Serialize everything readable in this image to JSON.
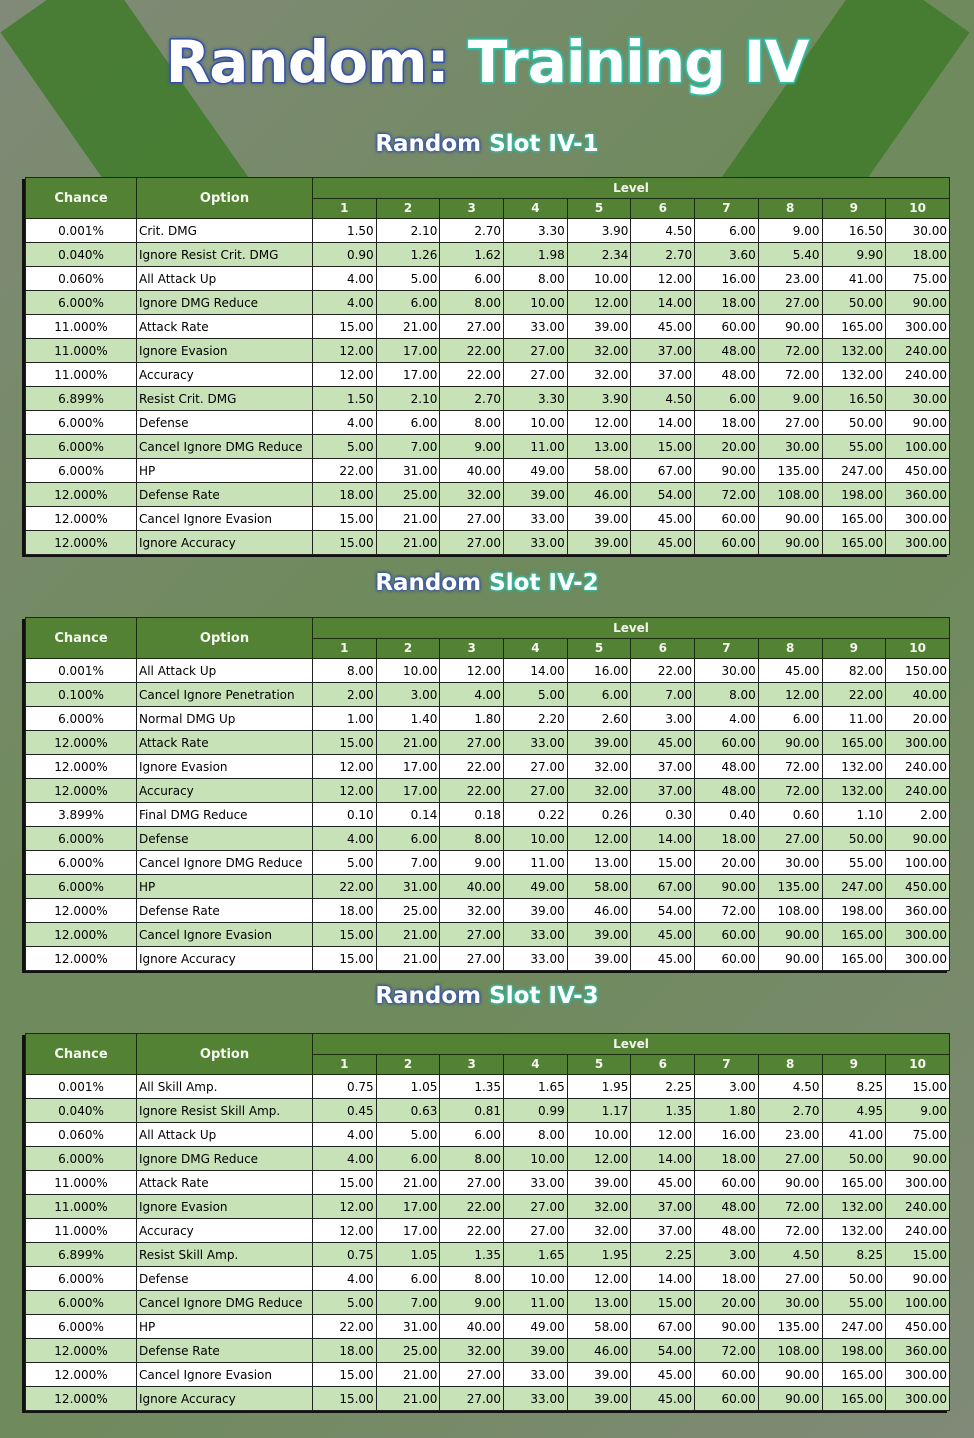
{
  "title": {
    "part1": "Random:",
    "part2": "Training IV"
  },
  "headers": {
    "chance": "Chance",
    "option": "Option",
    "level": "Level",
    "levels": [
      "1",
      "2",
      "3",
      "4",
      "5",
      "6",
      "7",
      "8",
      "9",
      "10"
    ]
  },
  "tables": [
    {
      "title_a": "Random",
      "title_b": "Slot IV-1",
      "rows": [
        [
          "0.001%",
          "Crit. DMG",
          "1.50",
          "2.10",
          "2.70",
          "3.30",
          "3.90",
          "4.50",
          "6.00",
          "9.00",
          "16.50",
          "30.00"
        ],
        [
          "0.040%",
          "Ignore Resist Crit. DMG",
          "0.90",
          "1.26",
          "1.62",
          "1.98",
          "2.34",
          "2.70",
          "3.60",
          "5.40",
          "9.90",
          "18.00"
        ],
        [
          "0.060%",
          "All Attack Up",
          "4.00",
          "5.00",
          "6.00",
          "8.00",
          "10.00",
          "12.00",
          "16.00",
          "23.00",
          "41.00",
          "75.00"
        ],
        [
          "6.000%",
          "Ignore DMG Reduce",
          "4.00",
          "6.00",
          "8.00",
          "10.00",
          "12.00",
          "14.00",
          "18.00",
          "27.00",
          "50.00",
          "90.00"
        ],
        [
          "11.000%",
          "Attack Rate",
          "15.00",
          "21.00",
          "27.00",
          "33.00",
          "39.00",
          "45.00",
          "60.00",
          "90.00",
          "165.00",
          "300.00"
        ],
        [
          "11.000%",
          "Ignore Evasion",
          "12.00",
          "17.00",
          "22.00",
          "27.00",
          "32.00",
          "37.00",
          "48.00",
          "72.00",
          "132.00",
          "240.00"
        ],
        [
          "11.000%",
          "Accuracy",
          "12.00",
          "17.00",
          "22.00",
          "27.00",
          "32.00",
          "37.00",
          "48.00",
          "72.00",
          "132.00",
          "240.00"
        ],
        [
          "6.899%",
          "Resist Crit. DMG",
          "1.50",
          "2.10",
          "2.70",
          "3.30",
          "3.90",
          "4.50",
          "6.00",
          "9.00",
          "16.50",
          "30.00"
        ],
        [
          "6.000%",
          "Defense",
          "4.00",
          "6.00",
          "8.00",
          "10.00",
          "12.00",
          "14.00",
          "18.00",
          "27.00",
          "50.00",
          "90.00"
        ],
        [
          "6.000%",
          "Cancel Ignore DMG Reduce",
          "5.00",
          "7.00",
          "9.00",
          "11.00",
          "13.00",
          "15.00",
          "20.00",
          "30.00",
          "55.00",
          "100.00"
        ],
        [
          "6.000%",
          "HP",
          "22.00",
          "31.00",
          "40.00",
          "49.00",
          "58.00",
          "67.00",
          "90.00",
          "135.00",
          "247.00",
          "450.00"
        ],
        [
          "12.000%",
          "Defense Rate",
          "18.00",
          "25.00",
          "32.00",
          "39.00",
          "46.00",
          "54.00",
          "72.00",
          "108.00",
          "198.00",
          "360.00"
        ],
        [
          "12.000%",
          "Cancel Ignore Evasion",
          "15.00",
          "21.00",
          "27.00",
          "33.00",
          "39.00",
          "45.00",
          "60.00",
          "90.00",
          "165.00",
          "300.00"
        ],
        [
          "12.000%",
          "Ignore Accuracy",
          "15.00",
          "21.00",
          "27.00",
          "33.00",
          "39.00",
          "45.00",
          "60.00",
          "90.00",
          "165.00",
          "300.00"
        ]
      ]
    },
    {
      "title_a": "Random",
      "title_b": "Slot IV-2",
      "rows": [
        [
          "0.001%",
          "All Attack Up",
          "8.00",
          "10.00",
          "12.00",
          "14.00",
          "16.00",
          "22.00",
          "30.00",
          "45.00",
          "82.00",
          "150.00"
        ],
        [
          "0.100%",
          "Cancel Ignore Penetration",
          "2.00",
          "3.00",
          "4.00",
          "5.00",
          "6.00",
          "7.00",
          "8.00",
          "12.00",
          "22.00",
          "40.00"
        ],
        [
          "6.000%",
          "Normal DMG Up",
          "1.00",
          "1.40",
          "1.80",
          "2.20",
          "2.60",
          "3.00",
          "4.00",
          "6.00",
          "11.00",
          "20.00"
        ],
        [
          "12.000%",
          "Attack Rate",
          "15.00",
          "21.00",
          "27.00",
          "33.00",
          "39.00",
          "45.00",
          "60.00",
          "90.00",
          "165.00",
          "300.00"
        ],
        [
          "12.000%",
          "Ignore Evasion",
          "12.00",
          "17.00",
          "22.00",
          "27.00",
          "32.00",
          "37.00",
          "48.00",
          "72.00",
          "132.00",
          "240.00"
        ],
        [
          "12.000%",
          "Accuracy",
          "12.00",
          "17.00",
          "22.00",
          "27.00",
          "32.00",
          "37.00",
          "48.00",
          "72.00",
          "132.00",
          "240.00"
        ],
        [
          "3.899%",
          "Final DMG Reduce",
          "0.10",
          "0.14",
          "0.18",
          "0.22",
          "0.26",
          "0.30",
          "0.40",
          "0.60",
          "1.10",
          "2.00"
        ],
        [
          "6.000%",
          "Defense",
          "4.00",
          "6.00",
          "8.00",
          "10.00",
          "12.00",
          "14.00",
          "18.00",
          "27.00",
          "50.00",
          "90.00"
        ],
        [
          "6.000%",
          "Cancel Ignore DMG Reduce",
          "5.00",
          "7.00",
          "9.00",
          "11.00",
          "13.00",
          "15.00",
          "20.00",
          "30.00",
          "55.00",
          "100.00"
        ],
        [
          "6.000%",
          "HP",
          "22.00",
          "31.00",
          "40.00",
          "49.00",
          "58.00",
          "67.00",
          "90.00",
          "135.00",
          "247.00",
          "450.00"
        ],
        [
          "12.000%",
          "Defense Rate",
          "18.00",
          "25.00",
          "32.00",
          "39.00",
          "46.00",
          "54.00",
          "72.00",
          "108.00",
          "198.00",
          "360.00"
        ],
        [
          "12.000%",
          "Cancel Ignore Evasion",
          "15.00",
          "21.00",
          "27.00",
          "33.00",
          "39.00",
          "45.00",
          "60.00",
          "90.00",
          "165.00",
          "300.00"
        ],
        [
          "12.000%",
          "Ignore Accuracy",
          "15.00",
          "21.00",
          "27.00",
          "33.00",
          "39.00",
          "45.00",
          "60.00",
          "90.00",
          "165.00",
          "300.00"
        ]
      ]
    },
    {
      "title_a": "Random",
      "title_b": "Slot IV-3",
      "rows": [
        [
          "0.001%",
          "All Skill Amp.",
          "0.75",
          "1.05",
          "1.35",
          "1.65",
          "1.95",
          "2.25",
          "3.00",
          "4.50",
          "8.25",
          "15.00"
        ],
        [
          "0.040%",
          "Ignore Resist Skill Amp.",
          "0.45",
          "0.63",
          "0.81",
          "0.99",
          "1.17",
          "1.35",
          "1.80",
          "2.70",
          "4.95",
          "9.00"
        ],
        [
          "0.060%",
          "All Attack Up",
          "4.00",
          "5.00",
          "6.00",
          "8.00",
          "10.00",
          "12.00",
          "16.00",
          "23.00",
          "41.00",
          "75.00"
        ],
        [
          "6.000%",
          "Ignore DMG Reduce",
          "4.00",
          "6.00",
          "8.00",
          "10.00",
          "12.00",
          "14.00",
          "18.00",
          "27.00",
          "50.00",
          "90.00"
        ],
        [
          "11.000%",
          "Attack Rate",
          "15.00",
          "21.00",
          "27.00",
          "33.00",
          "39.00",
          "45.00",
          "60.00",
          "90.00",
          "165.00",
          "300.00"
        ],
        [
          "11.000%",
          "Ignore Evasion",
          "12.00",
          "17.00",
          "22.00",
          "27.00",
          "32.00",
          "37.00",
          "48.00",
          "72.00",
          "132.00",
          "240.00"
        ],
        [
          "11.000%",
          "Accuracy",
          "12.00",
          "17.00",
          "22.00",
          "27.00",
          "32.00",
          "37.00",
          "48.00",
          "72.00",
          "132.00",
          "240.00"
        ],
        [
          "6.899%",
          "Resist Skill Amp.",
          "0.75",
          "1.05",
          "1.35",
          "1.65",
          "1.95",
          "2.25",
          "3.00",
          "4.50",
          "8.25",
          "15.00"
        ],
        [
          "6.000%",
          "Defense",
          "4.00",
          "6.00",
          "8.00",
          "10.00",
          "12.00",
          "14.00",
          "18.00",
          "27.00",
          "50.00",
          "90.00"
        ],
        [
          "6.000%",
          "Cancel Ignore DMG Reduce",
          "5.00",
          "7.00",
          "9.00",
          "11.00",
          "13.00",
          "15.00",
          "20.00",
          "30.00",
          "55.00",
          "100.00"
        ],
        [
          "6.000%",
          "HP",
          "22.00",
          "31.00",
          "40.00",
          "49.00",
          "58.00",
          "67.00",
          "90.00",
          "135.00",
          "247.00",
          "450.00"
        ],
        [
          "12.000%",
          "Defense Rate",
          "18.00",
          "25.00",
          "32.00",
          "39.00",
          "46.00",
          "54.00",
          "72.00",
          "108.00",
          "198.00",
          "360.00"
        ],
        [
          "12.000%",
          "Cancel Ignore Evasion",
          "15.00",
          "21.00",
          "27.00",
          "33.00",
          "39.00",
          "45.00",
          "60.00",
          "90.00",
          "165.00",
          "300.00"
        ],
        [
          "12.000%",
          "Ignore Accuracy",
          "15.00",
          "21.00",
          "27.00",
          "33.00",
          "39.00",
          "45.00",
          "60.00",
          "90.00",
          "165.00",
          "300.00"
        ]
      ]
    }
  ]
}
